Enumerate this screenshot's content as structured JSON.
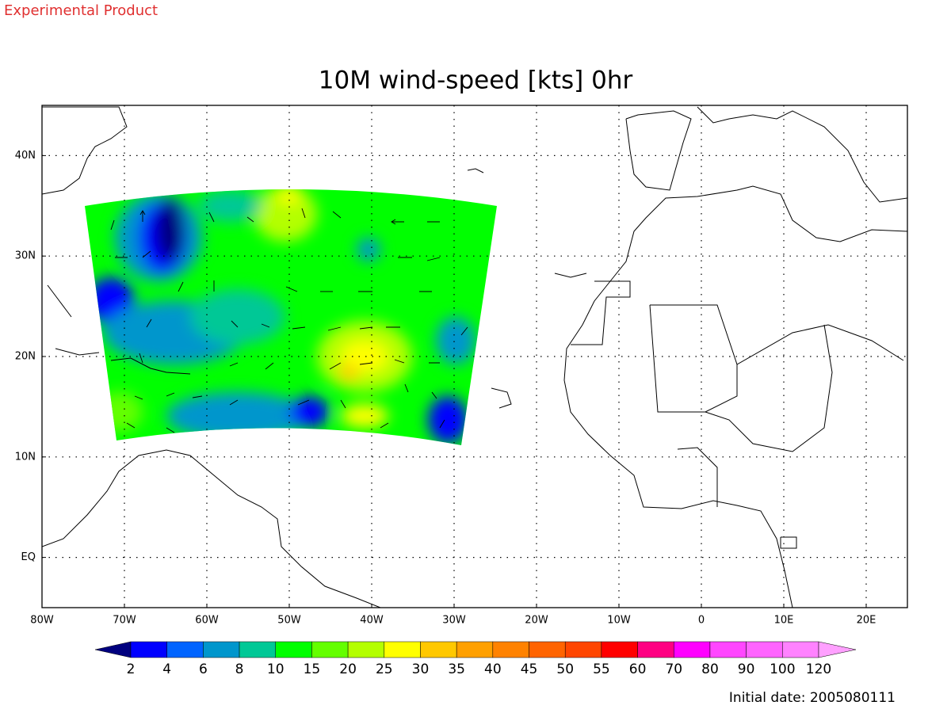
{
  "header": {
    "note": "Experimental Product"
  },
  "map": {
    "title": "10M wind-speed [kts] 0hr",
    "xlim": [
      -80,
      25
    ],
    "ylim": [
      -5,
      45
    ],
    "xticks": [
      {
        "value": -80,
        "label": "80W"
      },
      {
        "value": -70,
        "label": "70W"
      },
      {
        "value": -60,
        "label": "60W"
      },
      {
        "value": -50,
        "label": "50W"
      },
      {
        "value": -40,
        "label": "40W"
      },
      {
        "value": -30,
        "label": "30W"
      },
      {
        "value": -20,
        "label": "20W"
      },
      {
        "value": -10,
        "label": "10W"
      },
      {
        "value": 0,
        "label": "0"
      },
      {
        "value": 10,
        "label": "10E"
      },
      {
        "value": 20,
        "label": "20E"
      }
    ],
    "yticks": [
      {
        "value": 0,
        "label": "EQ"
      },
      {
        "value": 10,
        "label": "10N"
      },
      {
        "value": 20,
        "label": "20N"
      },
      {
        "value": 30,
        "label": "30N"
      },
      {
        "value": 40,
        "label": "40N"
      }
    ],
    "grid": true
  },
  "colorbar": {
    "labels": [
      2,
      4,
      6,
      8,
      10,
      15,
      20,
      25,
      30,
      35,
      40,
      45,
      50,
      55,
      60,
      70,
      80,
      90,
      100,
      120
    ],
    "colors": [
      "#00007f",
      "#0000ff",
      "#0064ff",
      "#0096cc",
      "#00c896",
      "#00ff00",
      "#64ff00",
      "#b4ff00",
      "#ffff00",
      "#ffc800",
      "#ffa000",
      "#ff8200",
      "#ff6400",
      "#ff4600",
      "#ff0000",
      "#ff0082",
      "#ff00ff",
      "#ff46ff",
      "#ff64ff",
      "#ff82ff",
      "#ffa0ff"
    ]
  },
  "footer": {
    "initial_date": "Initial date: 2005080111"
  }
}
